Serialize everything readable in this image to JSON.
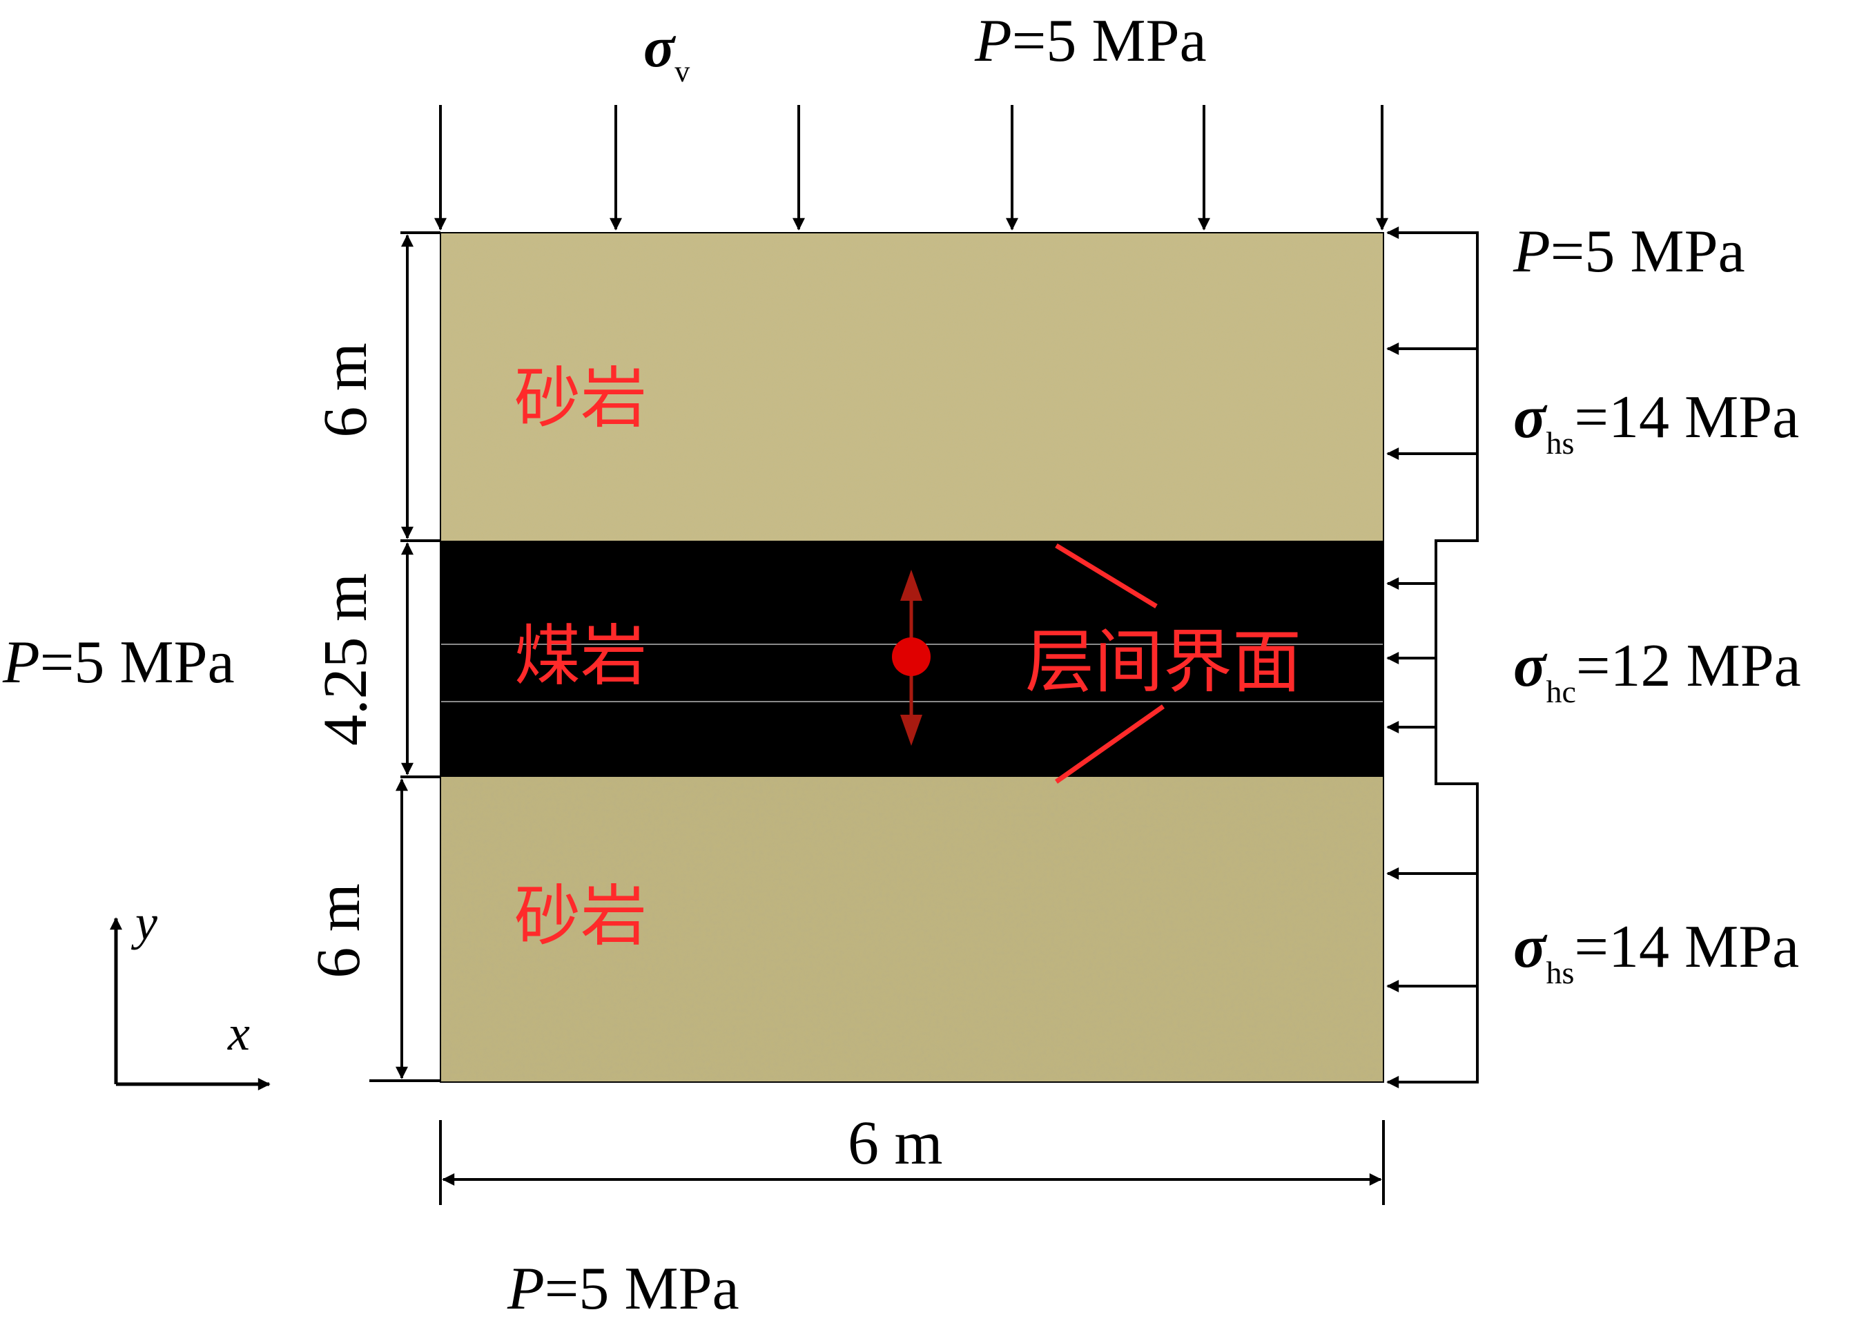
{
  "labels": {
    "sigma_symbol": "σ",
    "sigma_v_sub": "v",
    "sigma_hs_sub": "hs",
    "sigma_hc_sub": "hc",
    "p_symbol": "P",
    "p_rest": "=5 MPa",
    "hs_rest": "=14 MPa",
    "hc_rest": "=12 MPa",
    "dim_height_top": "6 m",
    "dim_height_coal": "4.25 m",
    "dim_height_bottom": "6 m",
    "dim_width": "6 m",
    "layer_top": "砂岩",
    "layer_coal": "煤岩",
    "layer_bottom": "砂岩",
    "interface": "层间界面",
    "axis_x": "x",
    "axis_y": "y"
  },
  "colors": {
    "sandstone": "#c2b67f",
    "coal": "#000000",
    "label_red": "#ff2a2a",
    "well_red": "#e00000",
    "arrow_red": "#a81a10",
    "interface_line": "#888888",
    "ink": "#000000"
  }
}
